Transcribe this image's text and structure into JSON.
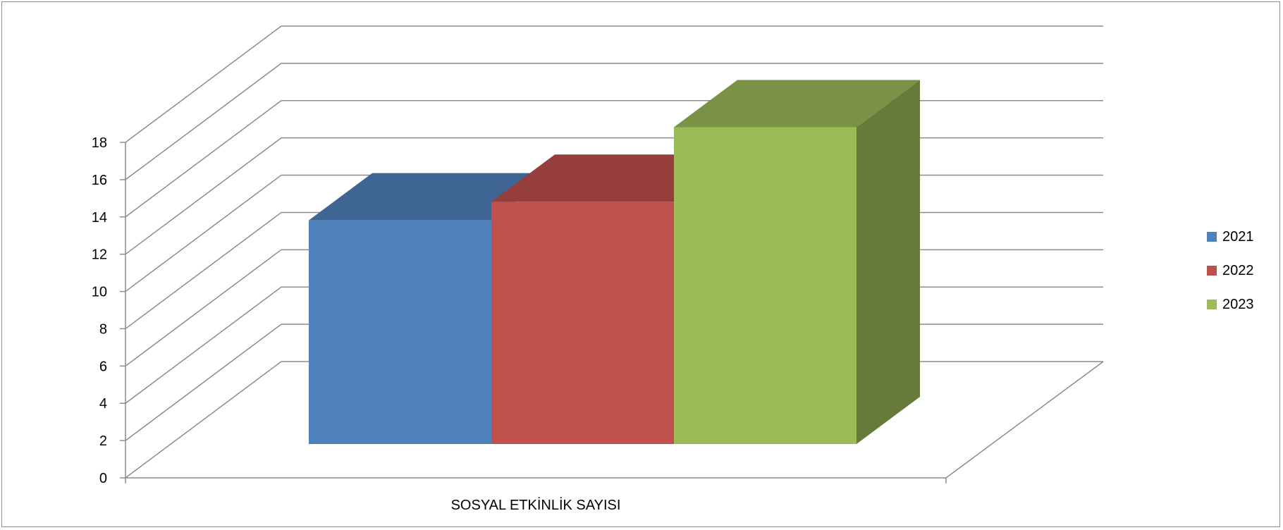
{
  "chart_data": {
    "type": "bar",
    "style": "3d-clustered-column",
    "categories": [
      "SOSYAL ETKİNLİK SAYISI"
    ],
    "series": [
      {
        "name": "2021",
        "values": [
          12
        ],
        "color": "#4F81BD"
      },
      {
        "name": "2022",
        "values": [
          13
        ],
        "color": "#C0504D"
      },
      {
        "name": "2023",
        "values": [
          17
        ],
        "color": "#9BBB59"
      }
    ],
    "ylim": [
      0,
      18
    ],
    "yticks": [
      "0",
      "2",
      "4",
      "6",
      "8",
      "10",
      "12",
      "14",
      "16",
      "18"
    ],
    "grid": true,
    "legend_position": "right"
  }
}
